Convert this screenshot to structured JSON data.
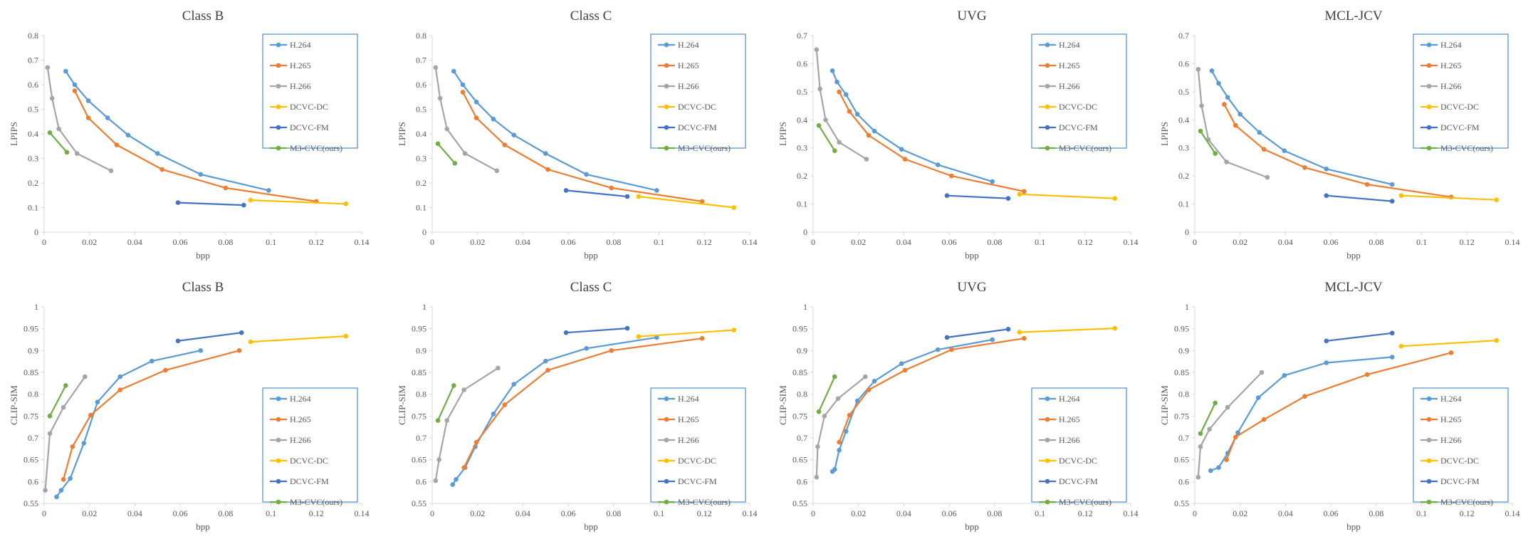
{
  "figure": {
    "series_names": [
      "H.264",
      "H.265",
      "H.266",
      "DCVC-DC",
      "DCVC-FM",
      "M3-CVC(ours)"
    ],
    "colors": {
      "H.264": "#5B9BD5",
      "H.265": "#ED7D31",
      "H.266": "#A5A5A5",
      "DCVC-DC": "#FFC000",
      "DCVC-FM": "#4472C4",
      "M3-CVC(ours)": "#70AD47",
      "axis": "#D9D9D9",
      "text": "#595959",
      "title": "#404040",
      "legend_border": "#2E75B6"
    }
  },
  "chart_data": [
    {
      "type": "line",
      "title": "Class B",
      "xlabel": "bpp",
      "ylabel": "LPIPS",
      "xlim": [
        0,
        0.14
      ],
      "xticks": [
        0,
        0.02,
        0.04,
        0.06,
        0.08,
        0.1,
        0.12,
        0.14
      ],
      "ylim": [
        0,
        0.8
      ],
      "yticks": [
        0,
        0.1,
        0.2,
        0.3,
        0.4,
        0.5,
        0.6,
        0.7,
        0.8
      ],
      "legend_position": "top-right",
      "series": [
        {
          "name": "H.264",
          "x": [
            0.0095,
            0.0135,
            0.0195,
            0.028,
            0.037,
            0.05,
            0.069,
            0.099
          ],
          "y": [
            0.655,
            0.6,
            0.535,
            0.465,
            0.395,
            0.32,
            0.235,
            0.17
          ]
        },
        {
          "name": "H.265",
          "x": [
            0.0135,
            0.0195,
            0.032,
            0.052,
            0.08,
            0.12
          ],
          "y": [
            0.575,
            0.465,
            0.355,
            0.255,
            0.18,
            0.125
          ]
        },
        {
          "name": "H.266",
          "x": [
            0.0015,
            0.0035,
            0.0065,
            0.0145,
            0.0295
          ],
          "y": [
            0.67,
            0.545,
            0.42,
            0.32,
            0.25
          ]
        },
        {
          "name": "DCVC-DC",
          "x": [
            0.091,
            0.133
          ],
          "y": [
            0.13,
            0.115
          ]
        },
        {
          "name": "DCVC-FM",
          "x": [
            0.059,
            0.088
          ],
          "y": [
            0.12,
            0.11
          ]
        },
        {
          "name": "M3-CVC(ours)",
          "x": [
            0.0025,
            0.01
          ],
          "y": [
            0.405,
            0.325
          ]
        }
      ]
    },
    {
      "type": "line",
      "title": "Class C",
      "xlabel": "bpp",
      "ylabel": "LPIPS",
      "xlim": [
        0,
        0.14
      ],
      "xticks": [
        0,
        0.02,
        0.04,
        0.06,
        0.08,
        0.1,
        0.12,
        0.14
      ],
      "ylim": [
        0,
        0.8
      ],
      "yticks": [
        0,
        0.1,
        0.2,
        0.3,
        0.4,
        0.5,
        0.6,
        0.7,
        0.8
      ],
      "legend_position": "top-right",
      "series": [
        {
          "name": "H.264",
          "x": [
            0.0095,
            0.0135,
            0.0195,
            0.027,
            0.036,
            0.05,
            0.068,
            0.099
          ],
          "y": [
            0.655,
            0.6,
            0.53,
            0.46,
            0.395,
            0.32,
            0.235,
            0.17
          ]
        },
        {
          "name": "H.265",
          "x": [
            0.0135,
            0.0195,
            0.032,
            0.051,
            0.079,
            0.119
          ],
          "y": [
            0.57,
            0.465,
            0.355,
            0.255,
            0.18,
            0.125
          ]
        },
        {
          "name": "H.266",
          "x": [
            0.0015,
            0.0035,
            0.0065,
            0.0145,
            0.0285
          ],
          "y": [
            0.67,
            0.545,
            0.42,
            0.32,
            0.25
          ]
        },
        {
          "name": "DCVC-DC",
          "x": [
            0.091,
            0.133
          ],
          "y": [
            0.145,
            0.1
          ]
        },
        {
          "name": "DCVC-FM",
          "x": [
            0.059,
            0.086
          ],
          "y": [
            0.17,
            0.145
          ]
        },
        {
          "name": "M3-CVC(ours)",
          "x": [
            0.0025,
            0.01
          ],
          "y": [
            0.36,
            0.28
          ]
        }
      ]
    },
    {
      "type": "line",
      "title": "UVG",
      "xlabel": "bpp",
      "ylabel": "LPIPS",
      "xlim": [
        0,
        0.14
      ],
      "xticks": [
        0,
        0.02,
        0.04,
        0.06,
        0.08,
        0.1,
        0.12,
        0.14
      ],
      "ylim": [
        0,
        0.7
      ],
      "yticks": [
        0,
        0.1,
        0.2,
        0.3,
        0.4,
        0.5,
        0.6,
        0.7
      ],
      "legend_position": "top-right",
      "series": [
        {
          "name": "H.264",
          "x": [
            0.0085,
            0.0105,
            0.0145,
            0.0195,
            0.027,
            0.039,
            0.055,
            0.079
          ],
          "y": [
            0.575,
            0.535,
            0.49,
            0.42,
            0.36,
            0.295,
            0.24,
            0.18
          ]
        },
        {
          "name": "H.265",
          "x": [
            0.0115,
            0.016,
            0.0245,
            0.0405,
            0.061,
            0.093
          ],
          "y": [
            0.5,
            0.43,
            0.345,
            0.26,
            0.2,
            0.145
          ]
        },
        {
          "name": "H.266",
          "x": [
            0.0015,
            0.003,
            0.0055,
            0.0115,
            0.0235
          ],
          "y": [
            0.65,
            0.51,
            0.4,
            0.32,
            0.26
          ]
        },
        {
          "name": "DCVC-DC",
          "x": [
            0.091,
            0.133
          ],
          "y": [
            0.135,
            0.12
          ]
        },
        {
          "name": "DCVC-FM",
          "x": [
            0.059,
            0.086
          ],
          "y": [
            0.13,
            0.12
          ]
        },
        {
          "name": "M3-CVC(ours)",
          "x": [
            0.0025,
            0.0095
          ],
          "y": [
            0.38,
            0.29
          ]
        }
      ]
    },
    {
      "type": "line",
      "title": "MCL-JCV",
      "xlabel": "bpp",
      "ylabel": "LPIPS",
      "xlim": [
        0,
        0.14
      ],
      "xticks": [
        0,
        0.02,
        0.04,
        0.06,
        0.08,
        0.1,
        0.12,
        0.14
      ],
      "ylim": [
        0,
        0.7
      ],
      "yticks": [
        0,
        0.1,
        0.2,
        0.3,
        0.4,
        0.5,
        0.6,
        0.7
      ],
      "legend_position": "top-right",
      "series": [
        {
          "name": "H.264",
          "x": [
            0.0075,
            0.0105,
            0.0145,
            0.02,
            0.0285,
            0.0395,
            0.058,
            0.087
          ],
          "y": [
            0.575,
            0.53,
            0.48,
            0.42,
            0.355,
            0.29,
            0.225,
            0.17
          ]
        },
        {
          "name": "H.265",
          "x": [
            0.013,
            0.018,
            0.0305,
            0.0485,
            0.076,
            0.113
          ],
          "y": [
            0.455,
            0.38,
            0.295,
            0.23,
            0.17,
            0.125
          ]
        },
        {
          "name": "H.266",
          "x": [
            0.0015,
            0.003,
            0.006,
            0.014,
            0.032
          ],
          "y": [
            0.58,
            0.45,
            0.33,
            0.25,
            0.195
          ]
        },
        {
          "name": "DCVC-DC",
          "x": [
            0.091,
            0.133
          ],
          "y": [
            0.13,
            0.115
          ]
        },
        {
          "name": "DCVC-FM",
          "x": [
            0.058,
            0.087
          ],
          "y": [
            0.13,
            0.11
          ]
        },
        {
          "name": "M3-CVC(ours)",
          "x": [
            0.0025,
            0.009
          ],
          "y": [
            0.36,
            0.28
          ]
        }
      ]
    },
    {
      "type": "line",
      "title": "Class B",
      "xlabel": "bpp",
      "ylabel": "CLIP-SIM",
      "xlim": [
        0,
        0.14
      ],
      "xticks": [
        0,
        0.02,
        0.04,
        0.06,
        0.08,
        0.1,
        0.12,
        0.14
      ],
      "ylim": [
        0.55,
        1
      ],
      "yticks": [
        0.55,
        0.6,
        0.65,
        0.7,
        0.75,
        0.8,
        0.85,
        0.9,
        0.95,
        1
      ],
      "legend_position": "bottom-right",
      "series": [
        {
          "name": "H.264",
          "x": [
            0.0055,
            0.0075,
            0.0115,
            0.0175,
            0.0235,
            0.0335,
            0.0475,
            0.069
          ],
          "y": [
            0.565,
            0.58,
            0.607,
            0.688,
            0.782,
            0.84,
            0.876,
            0.9
          ]
        },
        {
          "name": "H.265",
          "x": [
            0.0085,
            0.0125,
            0.0205,
            0.0335,
            0.0535,
            0.086
          ],
          "y": [
            0.605,
            0.68,
            0.752,
            0.81,
            0.855,
            0.9
          ]
        },
        {
          "name": "H.266",
          "x": [
            0.0005,
            0.0025,
            0.0085,
            0.018
          ],
          "y": [
            0.58,
            0.71,
            0.77,
            0.84
          ]
        },
        {
          "name": "DCVC-DC",
          "x": [
            0.091,
            0.133
          ],
          "y": [
            0.92,
            0.933
          ]
        },
        {
          "name": "DCVC-FM",
          "x": [
            0.059,
            0.087
          ],
          "y": [
            0.922,
            0.941
          ]
        },
        {
          "name": "M3-CVC(ours)",
          "x": [
            0.0025,
            0.0095
          ],
          "y": [
            0.75,
            0.82
          ]
        }
      ]
    },
    {
      "type": "line",
      "title": "Class C",
      "xlabel": "bpp",
      "ylabel": "CLIP-SIM",
      "xlim": [
        0,
        0.14
      ],
      "xticks": [
        0,
        0.02,
        0.04,
        0.06,
        0.08,
        0.1,
        0.12,
        0.14
      ],
      "ylim": [
        0.55,
        1
      ],
      "yticks": [
        0.55,
        0.6,
        0.65,
        0.7,
        0.75,
        0.8,
        0.85,
        0.9,
        0.95,
        1
      ],
      "legend_position": "bottom-right",
      "series": [
        {
          "name": "H.264",
          "x": [
            0.009,
            0.0105,
            0.0145,
            0.019,
            0.027,
            0.036,
            0.05,
            0.068,
            0.099
          ],
          "y": [
            0.593,
            0.605,
            0.632,
            0.68,
            0.755,
            0.823,
            0.876,
            0.905,
            0.93
          ]
        },
        {
          "name": "H.265",
          "x": [
            0.014,
            0.0195,
            0.032,
            0.051,
            0.079,
            0.119
          ],
          "y": [
            0.632,
            0.69,
            0.776,
            0.855,
            0.9,
            0.928
          ]
        },
        {
          "name": "H.266",
          "x": [
            0.0015,
            0.003,
            0.0065,
            0.014,
            0.029
          ],
          "y": [
            0.602,
            0.65,
            0.74,
            0.81,
            0.86
          ]
        },
        {
          "name": "DCVC-DC",
          "x": [
            0.091,
            0.133
          ],
          "y": [
            0.932,
            0.947
          ]
        },
        {
          "name": "DCVC-FM",
          "x": [
            0.059,
            0.086
          ],
          "y": [
            0.941,
            0.951
          ]
        },
        {
          "name": "M3-CVC(ours)",
          "x": [
            0.0025,
            0.0095
          ],
          "y": [
            0.74,
            0.82
          ]
        }
      ]
    },
    {
      "type": "line",
      "title": "UVG",
      "xlabel": "bpp",
      "ylabel": "CLIP-SIM",
      "xlim": [
        0,
        0.14
      ],
      "xticks": [
        0,
        0.02,
        0.04,
        0.06,
        0.08,
        0.1,
        0.12,
        0.14
      ],
      "ylim": [
        0.55,
        1
      ],
      "yticks": [
        0.55,
        0.6,
        0.65,
        0.7,
        0.75,
        0.8,
        0.85,
        0.9,
        0.95,
        1
      ],
      "legend_position": "bottom-right",
      "series": [
        {
          "name": "H.264",
          "x": [
            0.0085,
            0.0095,
            0.0115,
            0.0145,
            0.0195,
            0.027,
            0.039,
            0.055,
            0.079
          ],
          "y": [
            0.623,
            0.628,
            0.672,
            0.715,
            0.785,
            0.83,
            0.87,
            0.902,
            0.925
          ]
        },
        {
          "name": "H.265",
          "x": [
            0.0115,
            0.016,
            0.0245,
            0.0405,
            0.061,
            0.093
          ],
          "y": [
            0.69,
            0.752,
            0.81,
            0.855,
            0.902,
            0.928
          ]
        },
        {
          "name": "H.266",
          "x": [
            0.0015,
            0.002,
            0.005,
            0.011,
            0.023
          ],
          "y": [
            0.61,
            0.68,
            0.75,
            0.79,
            0.84
          ]
        },
        {
          "name": "DCVC-DC",
          "x": [
            0.091,
            0.133
          ],
          "y": [
            0.942,
            0.951
          ]
        },
        {
          "name": "DCVC-FM",
          "x": [
            0.059,
            0.086
          ],
          "y": [
            0.93,
            0.949
          ]
        },
        {
          "name": "M3-CVC(ours)",
          "x": [
            0.0025,
            0.0095
          ],
          "y": [
            0.76,
            0.84
          ]
        }
      ]
    },
    {
      "type": "line",
      "title": "MCL-JCV",
      "xlabel": "bpp",
      "ylabel": "CLIP-SIM",
      "xlim": [
        0,
        0.14
      ],
      "xticks": [
        0,
        0.02,
        0.04,
        0.06,
        0.08,
        0.1,
        0.12,
        0.14
      ],
      "ylim": [
        0.55,
        1
      ],
      "yticks": [
        0.55,
        0.6,
        0.65,
        0.7,
        0.75,
        0.8,
        0.85,
        0.9,
        0.95,
        1
      ],
      "legend_position": "bottom-right",
      "series": [
        {
          "name": "H.264",
          "x": [
            0.007,
            0.0105,
            0.0145,
            0.019,
            0.028,
            0.0395,
            0.058,
            0.087
          ],
          "y": [
            0.625,
            0.632,
            0.665,
            0.712,
            0.792,
            0.843,
            0.872,
            0.885
          ]
        },
        {
          "name": "H.265",
          "x": [
            0.014,
            0.018,
            0.0305,
            0.0485,
            0.076,
            0.113
          ],
          "y": [
            0.65,
            0.702,
            0.742,
            0.795,
            0.845,
            0.895
          ]
        },
        {
          "name": "H.266",
          "x": [
            0.0015,
            0.0025,
            0.0065,
            0.0145,
            0.0295
          ],
          "y": [
            0.61,
            0.68,
            0.72,
            0.77,
            0.85
          ]
        },
        {
          "name": "DCVC-DC",
          "x": [
            0.091,
            0.133
          ],
          "y": [
            0.91,
            0.923
          ]
        },
        {
          "name": "DCVC-FM",
          "x": [
            0.058,
            0.087
          ],
          "y": [
            0.922,
            0.94
          ]
        },
        {
          "name": "M3-CVC(ours)",
          "x": [
            0.0025,
            0.009
          ],
          "y": [
            0.71,
            0.78
          ]
        }
      ]
    }
  ]
}
